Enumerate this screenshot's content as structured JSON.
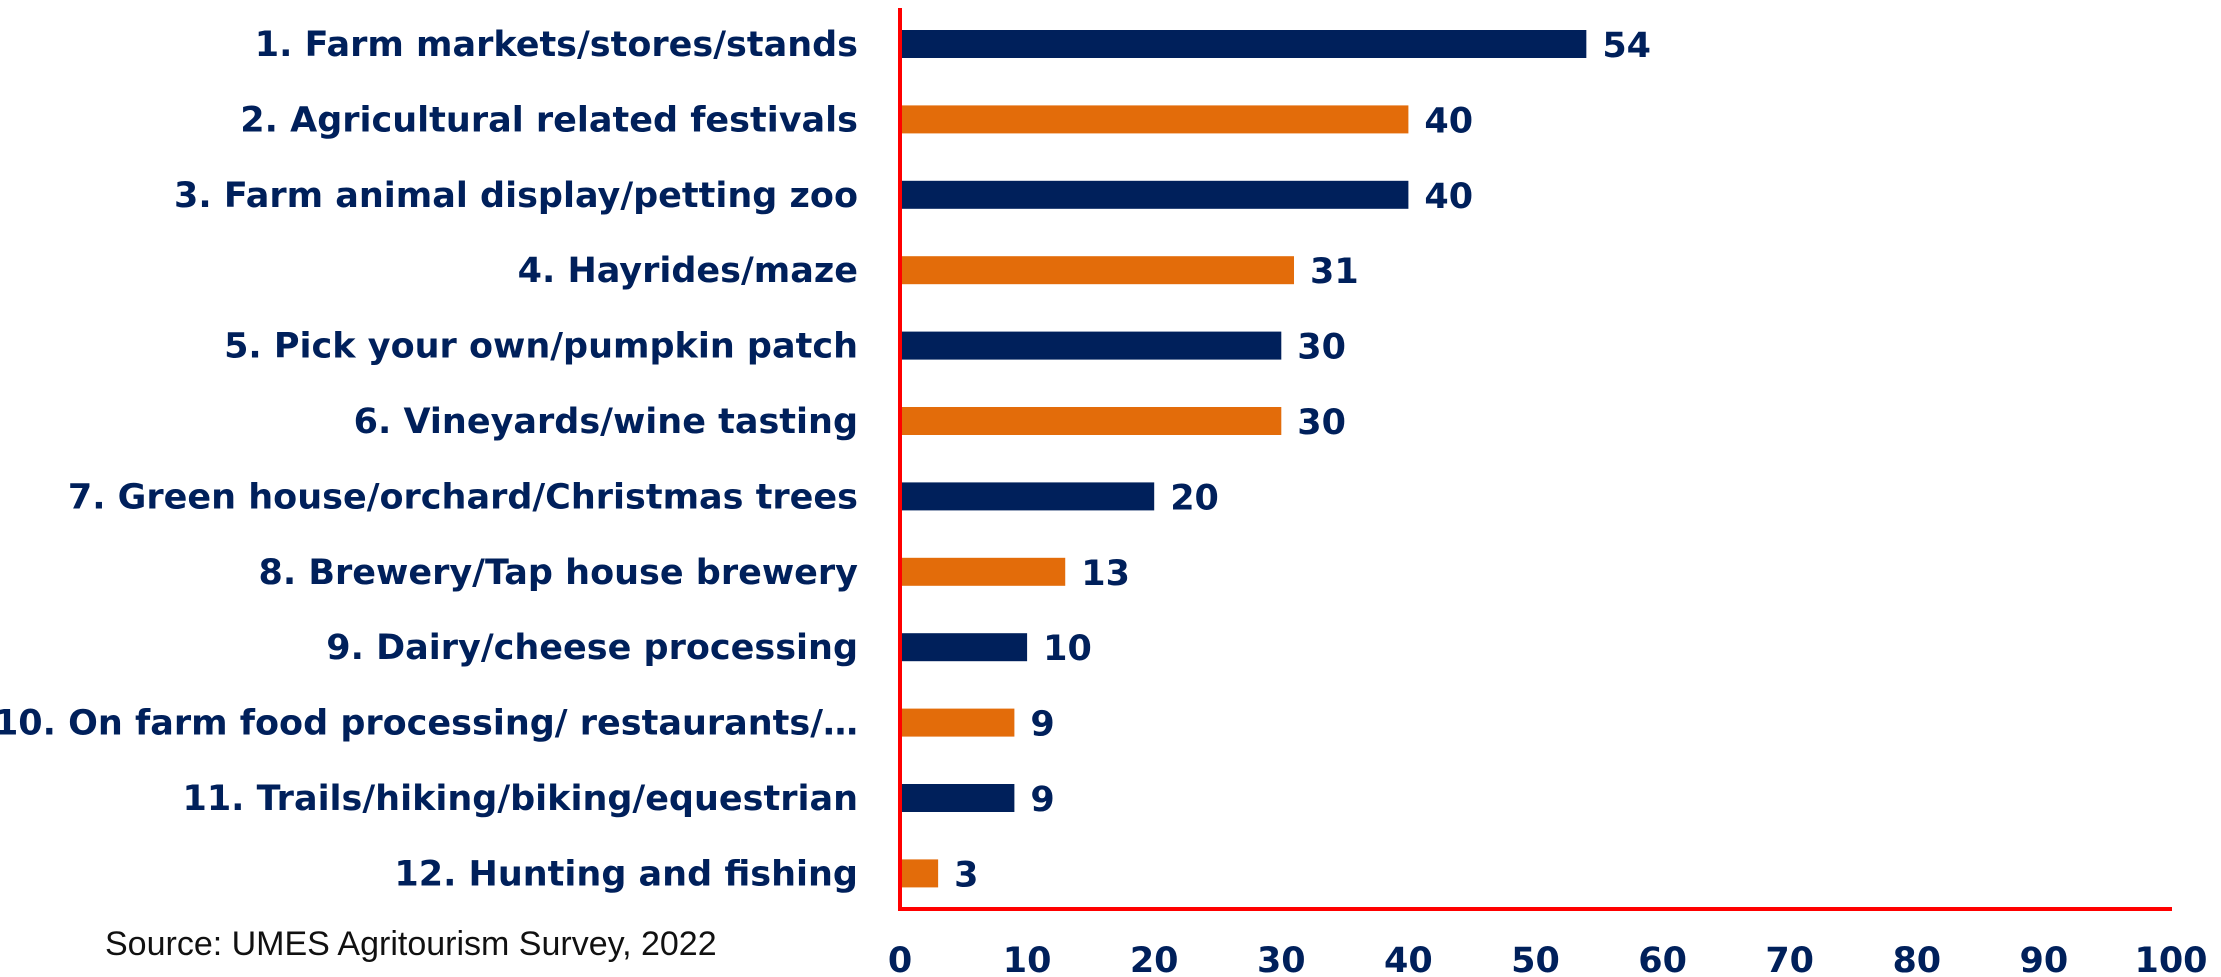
{
  "chart_data": {
    "type": "bar",
    "orientation": "horizontal",
    "categories": [
      "1. Farm markets/stores/stands",
      "2. Agricultural related festivals",
      "3. Farm animal display/petting zoo",
      "4. Hayrides/maze",
      "5. Pick your own/pumpkin patch",
      "6. Vineyards/wine tasting",
      "7. Green house/orchard/Christmas trees",
      "8. Brewery/Tap house brewery",
      "9. Dairy/cheese processing",
      "10. On farm food processing/ restaurants/…",
      "11. Trails/hiking/biking/equestrian",
      "12. Hunting and fishing"
    ],
    "values": [
      54,
      40,
      40,
      31,
      30,
      30,
      20,
      13,
      10,
      9,
      9,
      3
    ],
    "value_labels": [
      "54",
      "40",
      "40",
      "31",
      "30",
      "30",
      "20",
      "13",
      "10",
      "9",
      "9",
      "3"
    ],
    "bar_colors": [
      "#00205B",
      "#E36C0A",
      "#00205B",
      "#E36C0A",
      "#00205B",
      "#E36C0A",
      "#00205B",
      "#E36C0A",
      "#00205B",
      "#E36C0A",
      "#00205B",
      "#E36C0A"
    ],
    "xlim": [
      0,
      100
    ],
    "xticks": [
      0,
      10,
      20,
      30,
      40,
      50,
      60,
      70,
      80,
      90,
      100
    ],
    "xtick_labels": [
      "0",
      "10",
      "20",
      "30",
      "40",
      "50",
      "60",
      "70",
      "80",
      "90",
      "100"
    ],
    "grid": false,
    "legend": "none",
    "axis_color": "#FF0000",
    "label_color": "#00205B"
  },
  "source_note": "Source: UMES Agritourism Survey, 2022"
}
